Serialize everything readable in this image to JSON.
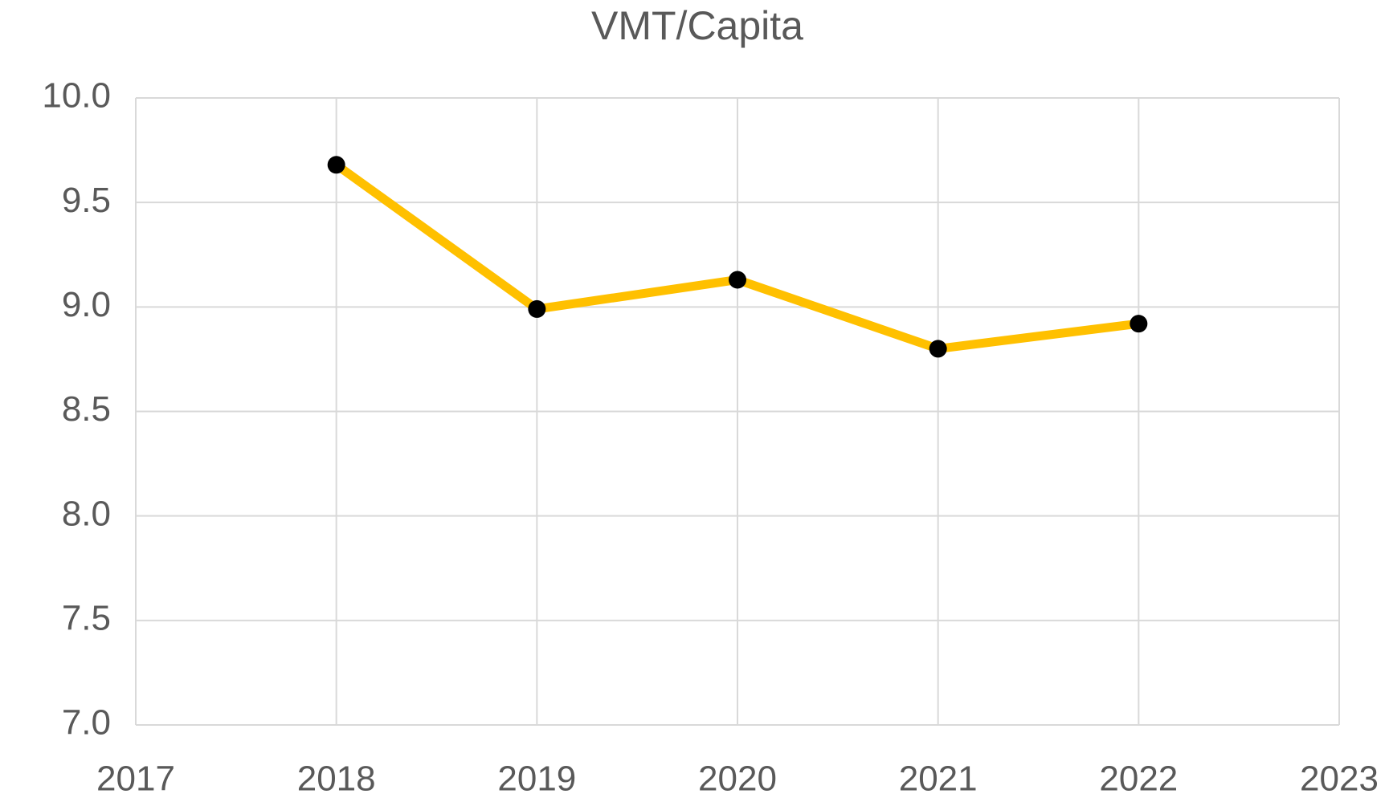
{
  "chart_data": {
    "type": "line",
    "title": "VMT/Capita",
    "x": [
      2018,
      2019,
      2020,
      2021,
      2022
    ],
    "values": [
      9.68,
      8.99,
      9.13,
      8.8,
      8.92
    ],
    "color": "#FFC000",
    "marker_color": "#000000",
    "xlim": [
      2017,
      2023
    ],
    "xticks": [
      2017,
      2018,
      2019,
      2020,
      2021,
      2022,
      2023
    ],
    "ylim": [
      7,
      10
    ],
    "yticks": [
      {
        "value": 7,
        "label": "7.0"
      },
      {
        "value": 7.5,
        "label": "7.5"
      },
      {
        "value": 8,
        "label": "8.0"
      },
      {
        "value": 8.5,
        "label": "8.5"
      },
      {
        "value": 9,
        "label": "9.0"
      },
      {
        "value": 9.5,
        "label": "9.5"
      },
      {
        "value": 10,
        "label": "10.0"
      }
    ],
    "grid": true
  }
}
